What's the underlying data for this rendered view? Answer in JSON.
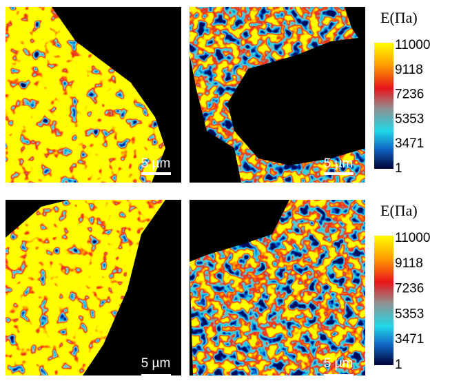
{
  "panels": [
    {
      "scale_label": "5 µm"
    },
    {
      "scale_label": "5 µm"
    },
    {
      "scale_label": "5 µm"
    },
    {
      "scale_label": "5 µm"
    }
  ],
  "colorbars": [
    {
      "title": "E(Πa)",
      "ticks": [
        "11000",
        "9118",
        "7236",
        "5353",
        "3471",
        "1"
      ]
    },
    {
      "title": "E(Πa)",
      "ticks": [
        "11000",
        "9118",
        "7236",
        "5353",
        "3471",
        "1"
      ]
    }
  ]
}
